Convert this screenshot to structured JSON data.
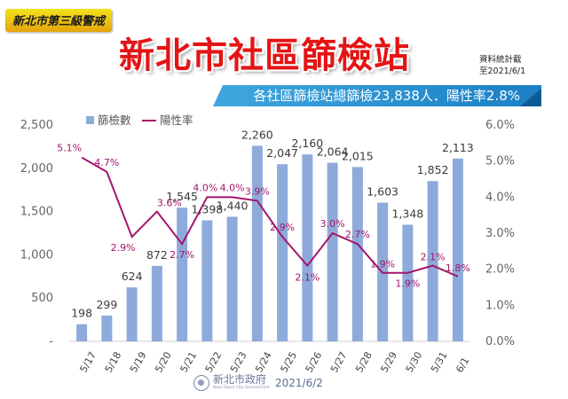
{
  "alert_label": "新北市第三級警戒",
  "title": "新北市社區篩檢站",
  "date_note": {
    "line1": "資料統計截",
    "line2": "至2021/6/1"
  },
  "summary": "各社區篩檢站總篩檢23,838人．陽性率2.8%",
  "footer": {
    "org_name": "新北市政府",
    "org_sub": "New Taipei City Government",
    "date": "2021/6/2"
  },
  "colors": {
    "bar": "#8eaadb",
    "line": "#a3156a",
    "title": "#e41414",
    "banner": "#1b7fc4",
    "label_dark": "#3a3a3a"
  },
  "chart_data": {
    "type": "bar+line",
    "categories": [
      "5/17",
      "5/18",
      "5/19",
      "5/20",
      "5/21",
      "5/22",
      "5/23",
      "5/24",
      "5/25",
      "5/26",
      "5/27",
      "5/28",
      "5/29",
      "5/30",
      "5/31",
      "6/1"
    ],
    "series": [
      {
        "name": "篩檢數",
        "type": "bar",
        "axis": "left",
        "values": [
          198,
          299,
          624,
          872,
          1545,
          1398,
          1440,
          2260,
          2047,
          2160,
          2064,
          2015,
          1603,
          1348,
          1852,
          2113
        ],
        "labels": [
          "198",
          "299",
          "624",
          "872",
          "1,545",
          "1,398",
          "1,440",
          "2,260",
          "2,047",
          "2,160",
          "2,064",
          "2,015",
          "1,603",
          "1,348",
          "1,852",
          "2,113"
        ]
      },
      {
        "name": "陽性率",
        "type": "line",
        "axis": "right",
        "values": [
          5.1,
          4.7,
          2.9,
          3.6,
          2.7,
          4.0,
          4.0,
          3.9,
          2.9,
          2.1,
          3.0,
          2.7,
          1.9,
          1.9,
          2.1,
          1.8
        ],
        "labels": [
          "5.1%",
          "4.7%",
          "2.9%",
          "3.6%",
          "2.7%",
          "4.0%",
          "4.0%",
          "3.9%",
          "2.9%",
          "2.1%",
          "3.0%",
          "2.7%",
          "1.9%",
          "1.9%",
          "2.1%",
          "1.8%"
        ]
      }
    ],
    "y_left": {
      "min": 0,
      "max": 2500,
      "ticks": [
        "-",
        "500",
        "1,000",
        "1,500",
        "2,000",
        "2,500"
      ]
    },
    "y_right": {
      "min": 0,
      "max": 6,
      "ticks": [
        "0.0%",
        "1.0%",
        "2.0%",
        "3.0%",
        "4.0%",
        "5.0%",
        "6.0%"
      ]
    },
    "grid": false,
    "legend_position": "top-left"
  }
}
